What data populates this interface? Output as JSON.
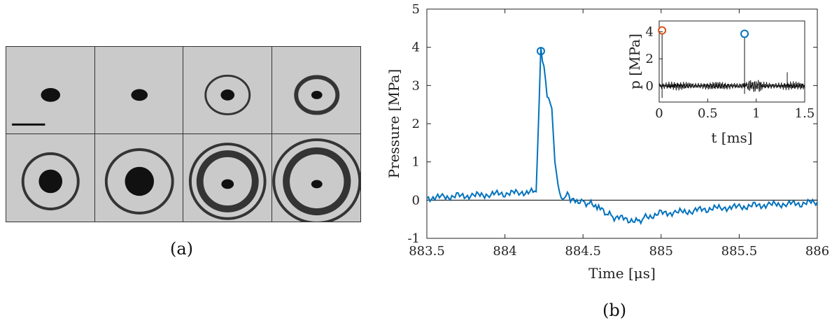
{
  "panel_a": {
    "caption": "(a)",
    "rows": 2,
    "cols": 4
  },
  "panel_b": {
    "caption": "(b)"
  },
  "chart_data": [
    {
      "type": "line",
      "xlabel": "Time [μs]",
      "ylabel": "Pressure [MPa]",
      "xlim": [
        883.5,
        886
      ],
      "ylim": [
        -1,
        5
      ],
      "xticks": [
        "883.5",
        "884",
        "884.5",
        "885",
        "885.5",
        "886"
      ],
      "yticks": [
        "-1",
        "0",
        "1",
        "2",
        "3",
        "4",
        "5"
      ],
      "series": [
        {
          "color": "#0072bd",
          "x": [
            883.5,
            883.6,
            883.7,
            883.8,
            883.9,
            884.0,
            884.1,
            884.2,
            884.23,
            884.24,
            884.25,
            884.27,
            884.3,
            884.32,
            884.35,
            884.38,
            884.4,
            884.42,
            884.45,
            884.5,
            884.55,
            884.6,
            884.65,
            884.7,
            884.8,
            884.85,
            884.9,
            885.0,
            885.1,
            885.2,
            885.3,
            885.4,
            885.5,
            885.6,
            885.7,
            885.8,
            885.9,
            886.0
          ],
          "y": [
            0.05,
            0.08,
            0.1,
            0.12,
            0.15,
            0.18,
            0.2,
            0.22,
            3.9,
            3.6,
            3.5,
            2.8,
            2.4,
            1.0,
            0.1,
            0.0,
            0.25,
            0.05,
            0.0,
            -0.05,
            -0.1,
            -0.2,
            -0.35,
            -0.45,
            -0.5,
            -0.55,
            -0.45,
            -0.35,
            -0.32,
            -0.28,
            -0.22,
            -0.2,
            -0.18,
            -0.15,
            -0.12,
            -0.1,
            -0.08,
            -0.05
          ]
        }
      ],
      "markers": [
        {
          "x": 884.23,
          "y": 3.9,
          "color": "#0072bd"
        }
      ]
    },
    {
      "type": "line",
      "xlabel": "t [ms]",
      "ylabel": "p [MPa]",
      "xlim": [
        0,
        1.5
      ],
      "ylim": [
        -1.2,
        4.8
      ],
      "xticks": [
        "0",
        "0.5",
        "1",
        "1.5"
      ],
      "yticks": [
        "0",
        "2",
        "4"
      ],
      "markers": [
        {
          "x": 0.03,
          "y": 4.1,
          "color": "#d95319"
        },
        {
          "x": 0.88,
          "y": 3.85,
          "color": "#0072bd"
        }
      ]
    }
  ]
}
